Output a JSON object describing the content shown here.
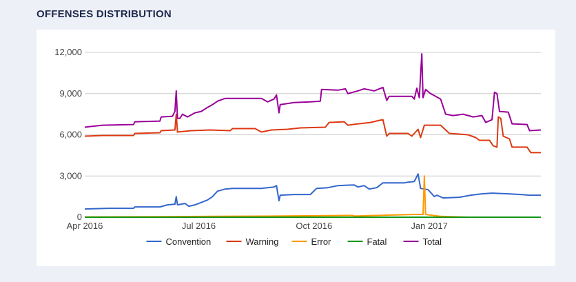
{
  "header": {
    "title": "OFFENSES DISTRIBUTION"
  },
  "chart_data": {
    "type": "line",
    "title": "OFFENSES DISTRIBUTION",
    "xlabel": "",
    "ylabel": "",
    "ylim": [
      0,
      12000
    ],
    "yticks": [
      0,
      3000,
      6000,
      9000,
      12000
    ],
    "ytick_labels": [
      "0",
      "3,000",
      "6,000",
      "9,000",
      "12,000"
    ],
    "xlim": [
      "2016-04-01",
      "2017-03-31"
    ],
    "xticks": [
      "2016-04-01",
      "2016-07-01",
      "2016-10-01",
      "2017-01-01"
    ],
    "xtick_labels": [
      "Apr 2016",
      "Jul 2016",
      "Oct 2016",
      "Jan 2017"
    ],
    "grid": true,
    "legend": "bottom",
    "series": [
      {
        "name": "Convention",
        "color": "#3366cc",
        "points": [
          [
            "2016-04-01",
            600
          ],
          [
            "2016-04-20",
            650
          ],
          [
            "2016-05-10",
            650
          ],
          [
            "2016-05-11",
            750
          ],
          [
            "2016-05-31",
            750
          ],
          [
            "2016-06-06",
            900
          ],
          [
            "2016-06-12",
            950
          ],
          [
            "2016-06-13",
            1500
          ],
          [
            "2016-06-14",
            900
          ],
          [
            "2016-06-20",
            1000
          ],
          [
            "2016-06-23",
            800
          ],
          [
            "2016-06-28",
            900
          ],
          [
            "2016-07-01",
            1000
          ],
          [
            "2016-07-08",
            1250
          ],
          [
            "2016-07-12",
            1500
          ],
          [
            "2016-07-16",
            1900
          ],
          [
            "2016-07-22",
            2050
          ],
          [
            "2016-07-28",
            2100
          ],
          [
            "2016-08-20",
            2100
          ],
          [
            "2016-08-30",
            2200
          ],
          [
            "2016-09-01",
            2300
          ],
          [
            "2016-09-03",
            1200
          ],
          [
            "2016-09-04",
            1600
          ],
          [
            "2016-09-15",
            1650
          ],
          [
            "2016-09-28",
            1650
          ],
          [
            "2016-10-03",
            2100
          ],
          [
            "2016-10-12",
            2150
          ],
          [
            "2016-10-20",
            2300
          ],
          [
            "2016-11-02",
            2350
          ],
          [
            "2016-11-05",
            2200
          ],
          [
            "2016-11-10",
            2300
          ],
          [
            "2016-11-14",
            2050
          ],
          [
            "2016-11-20",
            2150
          ],
          [
            "2016-11-25",
            2500
          ],
          [
            "2016-12-12",
            2500
          ],
          [
            "2016-12-15",
            2550
          ],
          [
            "2016-12-20",
            2600
          ],
          [
            "2016-12-23",
            3150
          ],
          [
            "2016-12-25",
            2100
          ],
          [
            "2016-12-31",
            2000
          ],
          [
            "2017-01-02",
            1800
          ],
          [
            "2017-01-05",
            1500
          ],
          [
            "2017-01-07",
            1600
          ],
          [
            "2017-01-12",
            1400
          ],
          [
            "2017-01-25",
            1450
          ],
          [
            "2017-02-03",
            1600
          ],
          [
            "2017-02-12",
            1700
          ],
          [
            "2017-02-20",
            1750
          ],
          [
            "2017-03-05",
            1700
          ],
          [
            "2017-03-15",
            1650
          ],
          [
            "2017-03-22",
            1600
          ],
          [
            "2017-03-31",
            1600
          ]
        ]
      },
      {
        "name": "Warning",
        "color": "#dc3912",
        "points": [
          [
            "2016-04-01",
            5900
          ],
          [
            "2016-04-15",
            5950
          ],
          [
            "2016-05-10",
            5950
          ],
          [
            "2016-05-11",
            6100
          ],
          [
            "2016-05-31",
            6150
          ],
          [
            "2016-06-01",
            6300
          ],
          [
            "2016-06-12",
            6350
          ],
          [
            "2016-06-13",
            7500
          ],
          [
            "2016-06-14",
            6200
          ],
          [
            "2016-06-25",
            6300
          ],
          [
            "2016-07-10",
            6350
          ],
          [
            "2016-07-26",
            6300
          ],
          [
            "2016-07-28",
            6450
          ],
          [
            "2016-08-15",
            6450
          ],
          [
            "2016-08-20",
            6200
          ],
          [
            "2016-08-28",
            6350
          ],
          [
            "2016-09-10",
            6400
          ],
          [
            "2016-09-20",
            6500
          ],
          [
            "2016-10-10",
            6550
          ],
          [
            "2016-10-13",
            6900
          ],
          [
            "2016-10-25",
            6950
          ],
          [
            "2016-10-28",
            6700
          ],
          [
            "2016-11-05",
            6800
          ],
          [
            "2016-11-15",
            6900
          ],
          [
            "2016-11-22",
            7050
          ],
          [
            "2016-11-25",
            7100
          ],
          [
            "2016-11-28",
            5900
          ],
          [
            "2016-11-30",
            6100
          ],
          [
            "2016-12-15",
            6100
          ],
          [
            "2016-12-18",
            5900
          ],
          [
            "2016-12-20",
            6100
          ],
          [
            "2016-12-23",
            6400
          ],
          [
            "2016-12-25",
            5800
          ],
          [
            "2016-12-28",
            6700
          ],
          [
            "2017-01-10",
            6700
          ],
          [
            "2017-01-17",
            6100
          ],
          [
            "2017-01-25",
            6050
          ],
          [
            "2017-02-01",
            6000
          ],
          [
            "2017-02-07",
            5800
          ],
          [
            "2017-02-10",
            5600
          ],
          [
            "2017-02-18",
            5600
          ],
          [
            "2017-02-21",
            5200
          ],
          [
            "2017-02-24",
            5100
          ],
          [
            "2017-02-25",
            7300
          ],
          [
            "2017-02-27",
            7200
          ],
          [
            "2017-03-01",
            5900
          ],
          [
            "2017-03-06",
            5700
          ],
          [
            "2017-03-08",
            5100
          ],
          [
            "2017-03-20",
            5100
          ],
          [
            "2017-03-23",
            4700
          ],
          [
            "2017-03-31",
            4700
          ]
        ]
      },
      {
        "name": "Error",
        "color": "#ff9900",
        "points": [
          [
            "2016-04-01",
            20
          ],
          [
            "2016-06-01",
            40
          ],
          [
            "2016-07-15",
            60
          ],
          [
            "2016-09-01",
            80
          ],
          [
            "2016-10-20",
            120
          ],
          [
            "2016-11-01",
            130
          ],
          [
            "2016-11-02",
            80
          ],
          [
            "2016-12-20",
            200
          ],
          [
            "2016-12-27",
            200
          ],
          [
            "2016-12-28",
            3000
          ],
          [
            "2016-12-29",
            200
          ],
          [
            "2017-01-10",
            60
          ],
          [
            "2017-02-01",
            0
          ],
          [
            "2017-03-31",
            0
          ]
        ]
      },
      {
        "name": "Fatal",
        "color": "#109618",
        "points": [
          [
            "2016-04-01",
            0
          ],
          [
            "2017-03-31",
            0
          ]
        ]
      },
      {
        "name": "Total",
        "color": "#990099",
        "points": [
          [
            "2016-04-01",
            6550
          ],
          [
            "2016-04-15",
            6700
          ],
          [
            "2016-05-10",
            6750
          ],
          [
            "2016-05-11",
            6950
          ],
          [
            "2016-05-31",
            7000
          ],
          [
            "2016-06-01",
            7300
          ],
          [
            "2016-06-10",
            7350
          ],
          [
            "2016-06-12",
            7700
          ],
          [
            "2016-06-13",
            9200
          ],
          [
            "2016-06-14",
            7200
          ],
          [
            "2016-06-16",
            7200
          ],
          [
            "2016-06-18",
            7500
          ],
          [
            "2016-06-22",
            7300
          ],
          [
            "2016-06-28",
            7600
          ],
          [
            "2016-07-03",
            7700
          ],
          [
            "2016-07-08",
            8000
          ],
          [
            "2016-07-12",
            8200
          ],
          [
            "2016-07-16",
            8450
          ],
          [
            "2016-07-22",
            8650
          ],
          [
            "2016-08-20",
            8650
          ],
          [
            "2016-08-25",
            8400
          ],
          [
            "2016-08-30",
            8600
          ],
          [
            "2016-09-01",
            8900
          ],
          [
            "2016-09-03",
            7600
          ],
          [
            "2016-09-04",
            8200
          ],
          [
            "2016-09-15",
            8350
          ],
          [
            "2016-09-28",
            8400
          ],
          [
            "2016-10-06",
            8450
          ],
          [
            "2016-10-07",
            9300
          ],
          [
            "2016-10-20",
            9250
          ],
          [
            "2016-10-26",
            9350
          ],
          [
            "2016-10-28",
            9000
          ],
          [
            "2016-11-05",
            9200
          ],
          [
            "2016-11-10",
            9350
          ],
          [
            "2016-11-18",
            9200
          ],
          [
            "2016-11-25",
            9450
          ],
          [
            "2016-11-28",
            8500
          ],
          [
            "2016-11-30",
            8800
          ],
          [
            "2016-12-18",
            8800
          ],
          [
            "2016-12-20",
            8600
          ],
          [
            "2016-12-22",
            9400
          ],
          [
            "2016-12-24",
            8700
          ],
          [
            "2016-12-26",
            11900
          ],
          [
            "2016-12-27",
            8700
          ],
          [
            "2016-12-29",
            9300
          ],
          [
            "2017-01-02",
            9000
          ],
          [
            "2017-01-10",
            8600
          ],
          [
            "2017-01-14",
            7500
          ],
          [
            "2017-01-20",
            7400
          ],
          [
            "2017-01-28",
            7500
          ],
          [
            "2017-02-05",
            7300
          ],
          [
            "2017-02-12",
            7400
          ],
          [
            "2017-02-15",
            6900
          ],
          [
            "2017-02-20",
            7100
          ],
          [
            "2017-02-22",
            9100
          ],
          [
            "2017-02-24",
            9000
          ],
          [
            "2017-02-26",
            7700
          ],
          [
            "2017-03-05",
            7650
          ],
          [
            "2017-03-08",
            6800
          ],
          [
            "2017-03-20",
            6750
          ],
          [
            "2017-03-22",
            6300
          ],
          [
            "2017-03-31",
            6350
          ]
        ]
      }
    ]
  }
}
